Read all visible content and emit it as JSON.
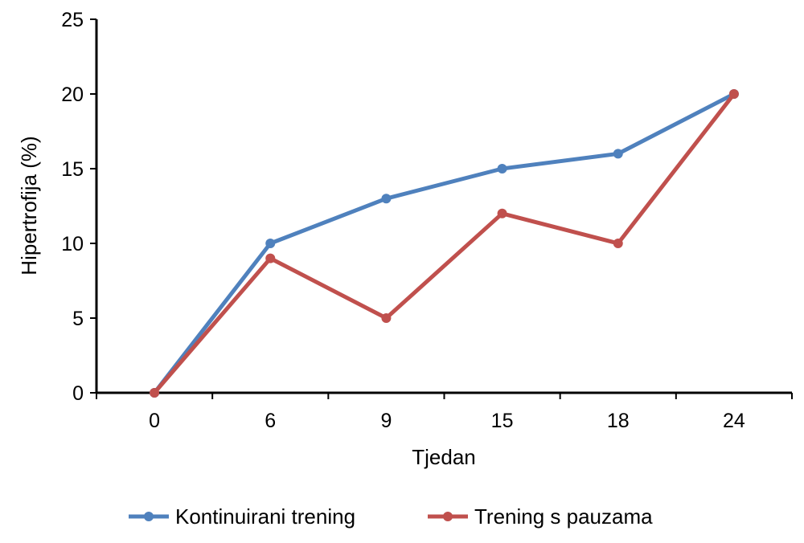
{
  "chart_data": {
    "type": "line",
    "title": "",
    "xlabel": "Tjedan",
    "ylabel": "Hipertrofija (%)",
    "categories": [
      "0",
      "6",
      "9",
      "15",
      "18",
      "24"
    ],
    "ylim": [
      0,
      25
    ],
    "yticks": [
      0,
      5,
      10,
      15,
      20,
      25
    ],
    "grid": false,
    "legend_position": "bottom",
    "series": [
      {
        "name": "Kontinuirani trening",
        "color": "#4F81BD",
        "values": [
          0,
          10,
          13,
          15,
          16,
          20
        ]
      },
      {
        "name": "Trening s pauzama",
        "color": "#C0504D",
        "values": [
          0,
          9,
          5,
          12,
          10,
          20
        ]
      }
    ]
  }
}
